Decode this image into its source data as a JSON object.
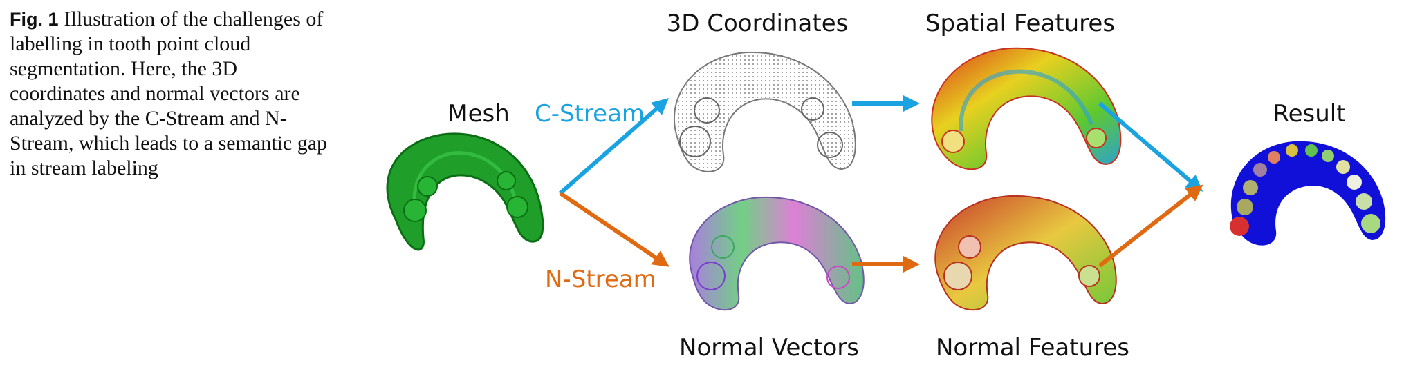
{
  "caption": {
    "label": "Fig. 1",
    "text": "Illustration of the challenges of labelling in tooth point cloud segmentation. Here, the 3D coordinates and normal vectors are analyzed by the C-Stream and N-Stream, which leads to a semantic gap in stream labeling"
  },
  "labels": {
    "mesh": "Mesh",
    "coords": "3D Coordinates",
    "spatial": "Spatial Features",
    "normals": "Normal Vectors",
    "normal_features": "Normal Features",
    "result": "Result"
  },
  "streams": {
    "c_stream": "C-Stream",
    "n_stream": "N-Stream"
  },
  "colors": {
    "c_stream": "#1aa3e0",
    "n_stream": "#e06a12",
    "mesh": "#1f9e2a",
    "result_base": "#1010d8"
  },
  "icons": {
    "mesh": "tooth-arch-mesh-image",
    "coords": "tooth-arch-point-cloud-image",
    "spatial": "tooth-arch-spatial-heatmap-image",
    "normals": "tooth-arch-normal-vectors-image",
    "normal_features": "tooth-arch-normal-heatmap-image",
    "result": "tooth-arch-segmentation-result-image"
  }
}
